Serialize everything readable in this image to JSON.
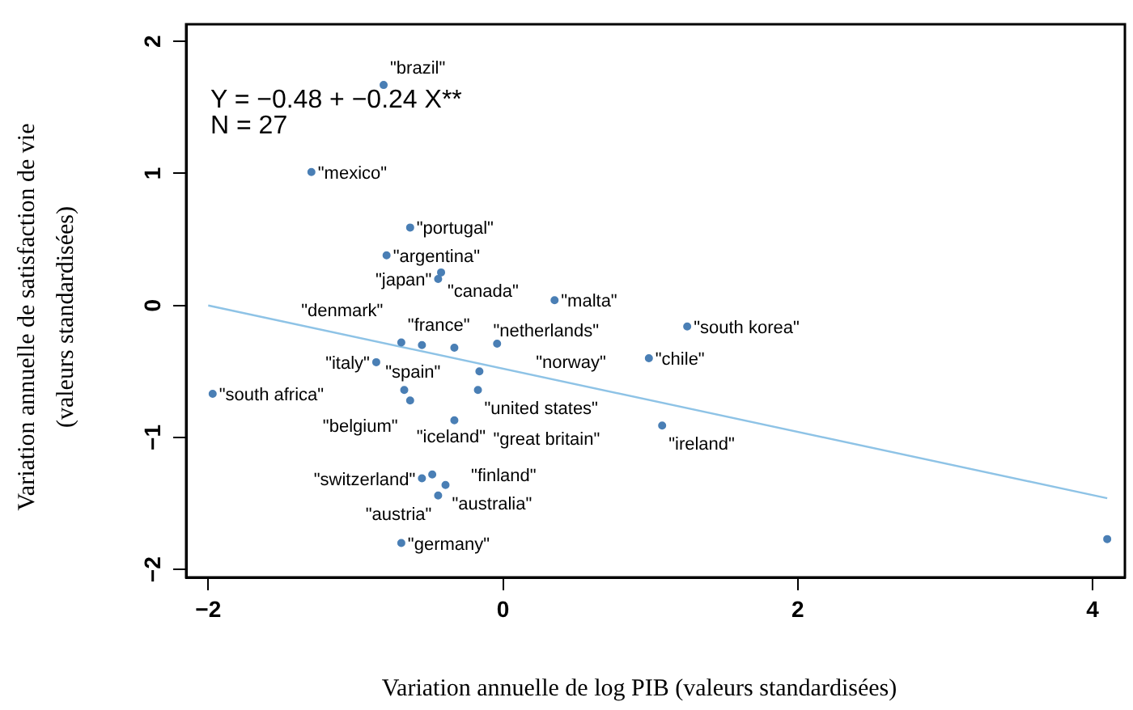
{
  "chart_data": {
    "type": "scatter",
    "xlabel": "Variation annuelle de log PIB (valeurs standardisées)",
    "ylabel": "Variation annuelle de satisfaction de vie (valeurs standardisées)",
    "xlim": [
      -2.15,
      4.22
    ],
    "xticks": [
      -2,
      0,
      2,
      4
    ],
    "ylim": [
      -2.06,
      2.13
    ],
    "yticks": [
      -2,
      -1,
      0,
      1,
      2
    ],
    "grid": false,
    "legend": false,
    "series": [
      {
        "marker": "circle",
        "color": "#4a7fb5",
        "x": [
          -0.81,
          -1.3,
          -0.63,
          -0.79,
          -0.42,
          -0.44,
          0.35,
          1.25,
          -0.69,
          -0.55,
          -0.33,
          -0.04,
          -0.86,
          0.99,
          -0.16,
          -1.97,
          -0.67,
          -0.17,
          -0.63,
          -0.33,
          1.08,
          -0.48,
          -0.55,
          -0.39,
          -0.44,
          -0.69,
          4.1
        ],
        "values": [
          1.67,
          1.01,
          0.59,
          0.38,
          0.25,
          0.2,
          0.04,
          -0.16,
          -0.28,
          -0.3,
          -0.32,
          -0.29,
          -0.43,
          -0.4,
          -0.5,
          -0.67,
          -0.64,
          -0.64,
          -0.72,
          -0.87,
          -0.91,
          -1.28,
          -1.31,
          -1.36,
          -1.44,
          -1.8,
          -1.77
        ]
      },
      {
        "type": "line",
        "marker": "none",
        "color": "#8ec3e6",
        "x": [
          -2,
          4.1
        ],
        "values": [
          0.0,
          -1.46
        ]
      }
    ],
    "annotations": [
      "Y = −0.48 + −0.24 X**",
      "N = 27",
      {
        "text": "\"brazil\"",
        "x": -0.81,
        "y": 1.67
      },
      {
        "text": "\"mexico\"",
        "x": -1.3,
        "y": 1.01
      },
      {
        "text": "\"portugal\"",
        "x": -0.63,
        "y": 0.59
      },
      {
        "text": "\"argentina\"",
        "x": -0.79,
        "y": 0.38
      },
      {
        "text": "\"canada\"",
        "x": -0.42,
        "y": 0.25
      },
      {
        "text": "\"japan\"",
        "x": -0.44,
        "y": 0.2
      },
      {
        "text": "\"malta\"",
        "x": 0.35,
        "y": 0.04
      },
      {
        "text": "\"south korea\"",
        "x": 1.25,
        "y": -0.16
      },
      {
        "text": "\"france\"",
        "x": -0.69,
        "y": -0.28
      },
      {
        "text": "\"denmark\"",
        "x": -0.55,
        "y": -0.3
      },
      {
        "text": "\"netherlands\"",
        "x": -0.33,
        "y": -0.32
      },
      {
        "text": "\"norway\"",
        "x": -0.04,
        "y": -0.29
      },
      {
        "text": "\"italy\"",
        "x": -0.86,
        "y": -0.43
      },
      {
        "text": "\"chile\"",
        "x": 0.99,
        "y": -0.4
      },
      {
        "text": "\"spain\"",
        "x": -0.16,
        "y": -0.5
      },
      {
        "text": "\"south africa\"",
        "x": -1.97,
        "y": -0.67
      },
      {
        "text": "\"belgium\"",
        "x": -0.67,
        "y": -0.64
      },
      {
        "text": "\"united states\"",
        "x": -0.17,
        "y": -0.64
      },
      {
        "text": "\"iceland\"",
        "x": -0.63,
        "y": -0.72
      },
      {
        "text": "\"great britain\"",
        "x": -0.33,
        "y": -0.87
      },
      {
        "text": "\"ireland\"",
        "x": 1.08,
        "y": -0.91
      },
      {
        "text": "\"finland\"",
        "x": -0.48,
        "y": -1.28
      },
      {
        "text": "\"switzerland\"",
        "x": -0.55,
        "y": -1.31
      },
      {
        "text": "\"australia\"",
        "x": -0.39,
        "y": -1.36
      },
      {
        "text": "\"austria\"",
        "x": -0.44,
        "y": -1.44
      },
      {
        "text": "\"germany\"",
        "x": -0.69,
        "y": -1.8
      }
    ]
  }
}
